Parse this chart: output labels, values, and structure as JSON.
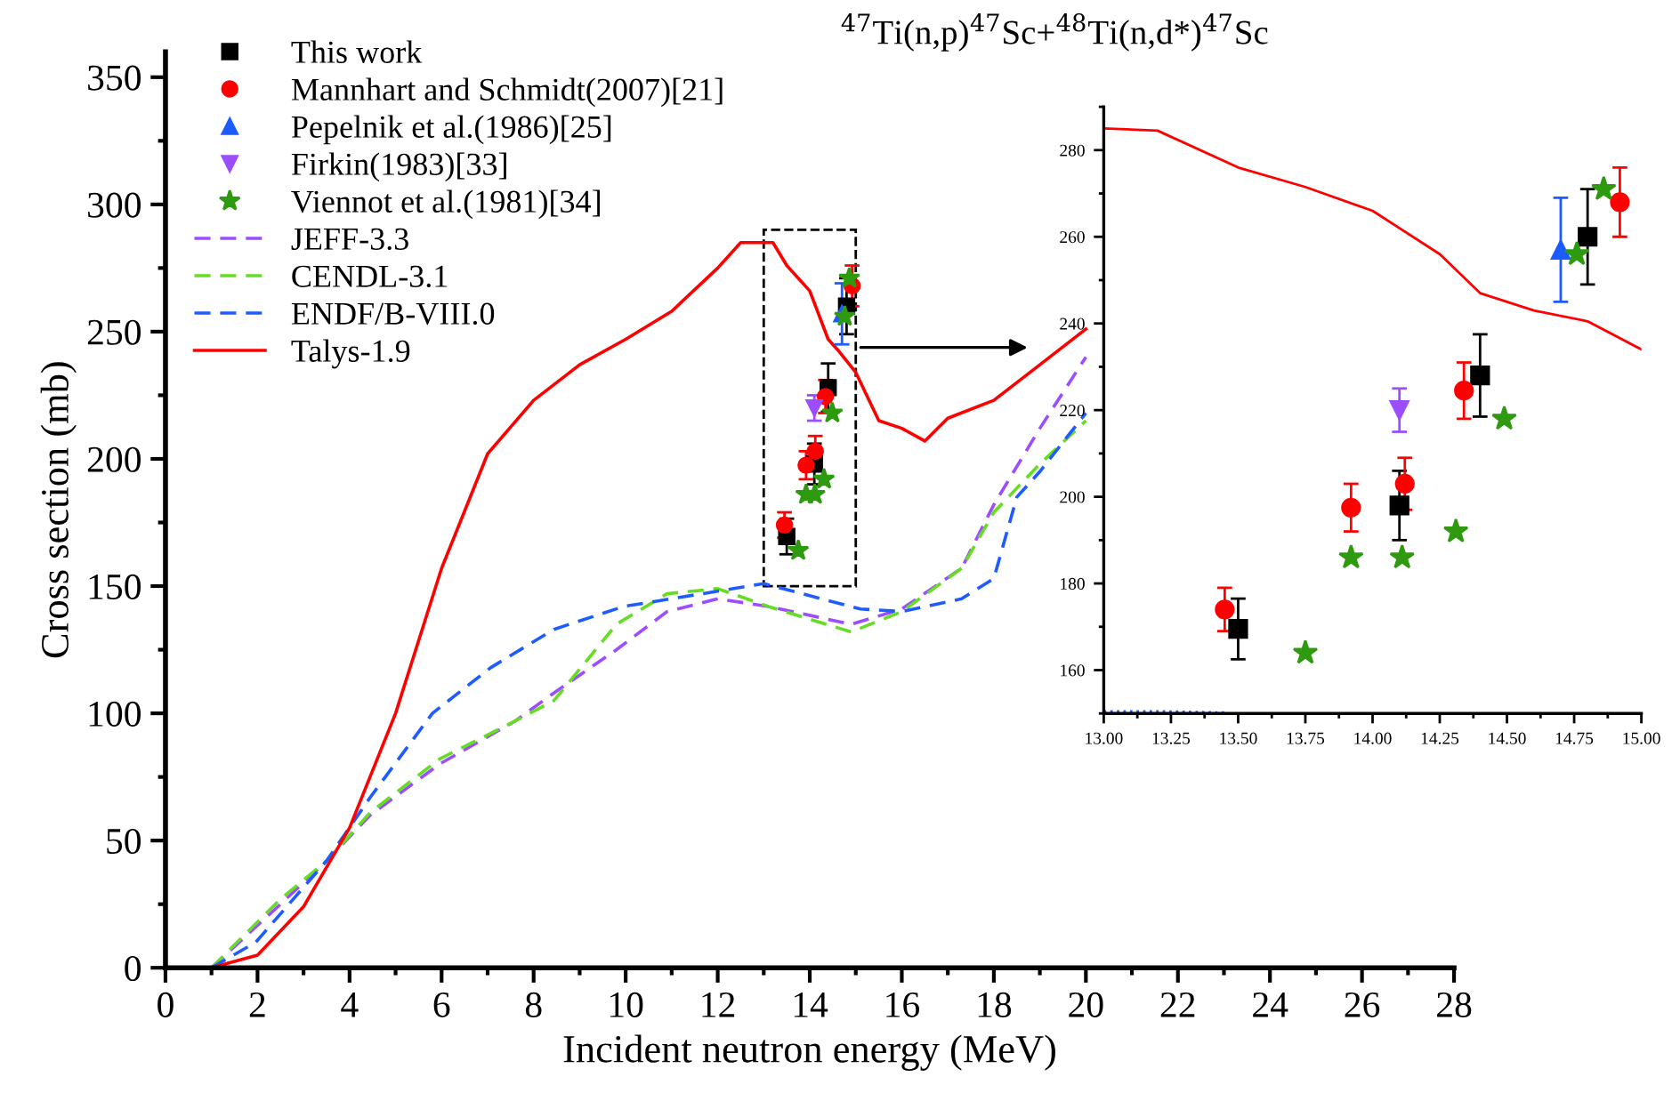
{
  "chart_data": [
    {
      "type": "line",
      "title": "$^{47}$Ti(n,p)$^{47}$Sc+$^{48}$Ti(n,d*)$^{47}$Sc",
      "xlabel": "Incident neutron energy (MeV)",
      "ylabel": "Cross section (mb)",
      "xlim": [
        0,
        28
      ],
      "xticks": [
        0,
        2,
        4,
        6,
        8,
        10,
        12,
        14,
        16,
        18,
        20,
        22,
        24,
        26,
        28
      ],
      "ylim": [
        0,
        360
      ],
      "yticks": [
        0,
        50,
        100,
        150,
        200,
        250,
        300,
        350
      ],
      "grid": false,
      "legend": "top left",
      "series": [
        {
          "name": "This work",
          "type": "scatter",
          "marker": "square",
          "color": "#000000",
          "x": [
            13.5,
            14.1,
            14.4,
            14.8
          ],
          "values": [
            169.5,
            198,
            228,
            260
          ],
          "errors": [
            7,
            8,
            9.5,
            11
          ]
        },
        {
          "name": "Mannhart and Schmidt(2007)[21]",
          "type": "scatter",
          "marker": "circle",
          "color": "#ff0000",
          "x": [
            13.45,
            13.92,
            14.12,
            14.34,
            14.92
          ],
          "values": [
            174,
            197.5,
            203,
            224.5,
            268
          ],
          "errors": [
            5,
            5.5,
            6,
            6.5,
            8
          ]
        },
        {
          "name": "Pepelnik et al.(1986)[25]",
          "type": "scatter",
          "marker": "triangle",
          "color": "#1a5cff",
          "x": [
            14.7
          ],
          "values": [
            257
          ],
          "errors": [
            12
          ]
        },
        {
          "name": "Firkin(1983)[33]",
          "type": "scatter",
          "marker": "triangle_down",
          "color": "#9b4dff",
          "x": [
            14.1
          ],
          "values": [
            220
          ],
          "errors": [
            5
          ]
        },
        {
          "name": "Viennot et al.(1981)[34]",
          "type": "scatter",
          "marker": "star",
          "color": "#2e9a10",
          "x": [
            13.75,
            13.92,
            14.11,
            14.31,
            14.49,
            14.76,
            14.86
          ],
          "values": [
            164,
            186,
            186,
            192,
            218,
            256,
            271
          ]
        },
        {
          "name": "JEFF-3.3",
          "line_style": "dashed",
          "color": "#9b4dff",
          "x": [
            1,
            2.5,
            3.5,
            4.45,
            5.95,
            7.6,
            8.44,
            9.8,
            10.9,
            12,
            13.1,
            14.9,
            16,
            17.3,
            18,
            19,
            20
          ],
          "values": [
            0,
            25,
            42,
            60,
            80,
            97,
            108,
            125,
            140,
            145,
            142,
            135,
            141,
            157,
            182,
            212,
            240
          ]
        },
        {
          "name": "CENDL-3.1",
          "line_style": "dashed",
          "color": "#66dd22",
          "x": [
            1,
            2.5,
            3.5,
            4.45,
            5.95,
            7.6,
            8.44,
            9.8,
            10.9,
            12,
            13.1,
            14.9,
            16,
            17.3,
            18,
            19,
            20
          ],
          "values": [
            0,
            27,
            42,
            61,
            82,
            97,
            105,
            135,
            147,
            149,
            142,
            132,
            140,
            157,
            179,
            198,
            215
          ]
        },
        {
          "name": "ENDF/B-VIII.0",
          "line_style": "dashed",
          "color": "#1f5cff",
          "x": [
            1,
            1.96,
            3.5,
            4.45,
            5.8,
            7.07,
            8.44,
            9.96,
            12,
            13,
            15.1,
            16,
            17.3,
            18,
            18.5,
            19,
            20
          ],
          "values": [
            0,
            10,
            42,
            67,
            100,
            118,
            133,
            142,
            148,
            151,
            141,
            140,
            145,
            153,
            185,
            195,
            218
          ]
        },
        {
          "name": "Talys-1.9",
          "line_style": "solid",
          "color": "#ff0000",
          "x": [
            1,
            2,
            3,
            4,
            5,
            6,
            7,
            8,
            9,
            10,
            11,
            12,
            12.5,
            13.2,
            13.5,
            14,
            14.4,
            14.6,
            15,
            15.5,
            16,
            16.5,
            17,
            18,
            19,
            20
          ],
          "values": [
            0,
            5,
            24,
            55,
            100,
            157,
            202,
            223,
            237,
            247,
            258,
            275,
            285,
            285,
            276,
            266,
            247,
            243,
            234,
            215,
            212,
            207,
            216,
            223,
            237,
            251
          ]
        }
      ]
    },
    {
      "type": "scatter",
      "xlim": [
        13,
        15
      ],
      "xticks": [
        {
          "value": 13,
          "label": "13.00"
        },
        {
          "value": 13.25,
          "label": "13.25"
        },
        {
          "value": 13.5,
          "label": "13.50"
        },
        {
          "value": 13.75,
          "label": "13.75"
        },
        {
          "value": 14,
          "label": "14.00"
        },
        {
          "value": 14.25,
          "label": "14.25"
        },
        {
          "value": 14.5,
          "label": "14.50"
        },
        {
          "value": 14.75,
          "label": "14.75"
        },
        {
          "value": 15,
          "label": "15.00"
        }
      ],
      "ylim": [
        150,
        290
      ],
      "yticks": [
        160,
        180,
        200,
        220,
        240,
        260,
        280
      ],
      "grid": false,
      "series": [
        {
          "type": "line",
          "line_style": "solid",
          "color": "#ff0000",
          "x": [
            13,
            13.2,
            13.5,
            13.75,
            14,
            14.25,
            14.4,
            14.6,
            14.8,
            15
          ],
          "values": [
            285,
            284.5,
            276,
            271.5,
            266,
            256,
            247,
            243,
            240.5,
            234
          ]
        },
        {
          "type": "line",
          "line_style": "dotted",
          "color": "#1f5cff",
          "x": [
            13,
            13.2,
            13.45
          ],
          "values": [
            150.5,
            150.5,
            150.2
          ]
        },
        {
          "marker": "square",
          "color": "#000000",
          "x": [
            13.5,
            14.1,
            14.4,
            14.8
          ],
          "values": [
            169.5,
            198,
            228,
            260
          ],
          "errors": [
            7,
            8,
            9.5,
            11
          ]
        },
        {
          "marker": "circle",
          "color": "#ff0000",
          "x": [
            13.45,
            13.92,
            14.12,
            14.34,
            14.92
          ],
          "values": [
            174,
            197.5,
            203,
            224.5,
            268
          ],
          "errors": [
            5,
            5.5,
            6,
            6.5,
            8
          ]
        },
        {
          "marker": "triangle",
          "color": "#1a5cff",
          "x": [
            14.7
          ],
          "values": [
            257
          ],
          "errors": [
            12
          ]
        },
        {
          "marker": "triangle_down",
          "color": "#9b4dff",
          "x": [
            14.1
          ],
          "values": [
            220
          ],
          "errors": [
            5
          ]
        },
        {
          "marker": "star",
          "color": "#2e9a10",
          "x": [
            13.75,
            13.92,
            14.11,
            14.31,
            14.49,
            14.76,
            14.86
          ],
          "values": [
            164,
            186,
            186,
            192,
            218,
            256,
            271
          ]
        }
      ]
    }
  ]
}
